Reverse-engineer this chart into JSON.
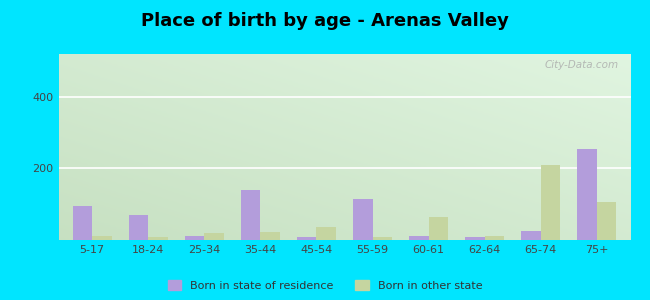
{
  "title": "Place of birth by age - Arenas Valley",
  "categories": [
    "5-17",
    "18-24",
    "25-34",
    "35-44",
    "45-54",
    "55-59",
    "60-61",
    "62-64",
    "65-74",
    "75+"
  ],
  "born_in_state": [
    95,
    70,
    10,
    140,
    8,
    115,
    10,
    8,
    25,
    255
  ],
  "born_other_state": [
    10,
    8,
    20,
    22,
    35,
    8,
    65,
    10,
    210,
    105
  ],
  "color_state": "#b39ddb",
  "color_other": "#c5d5a0",
  "ylim": [
    0,
    520
  ],
  "yticks": [
    200,
    400
  ],
  "outer_bg": "#00e5ff",
  "title_fontsize": 13,
  "legend_labels": [
    "Born in state of residence",
    "Born in other state"
  ],
  "watermark": "City-Data.com",
  "grad_colors": [
    "#c8e6c9",
    "#f1f8e9",
    "#ffffff"
  ],
  "bar_width": 0.35
}
